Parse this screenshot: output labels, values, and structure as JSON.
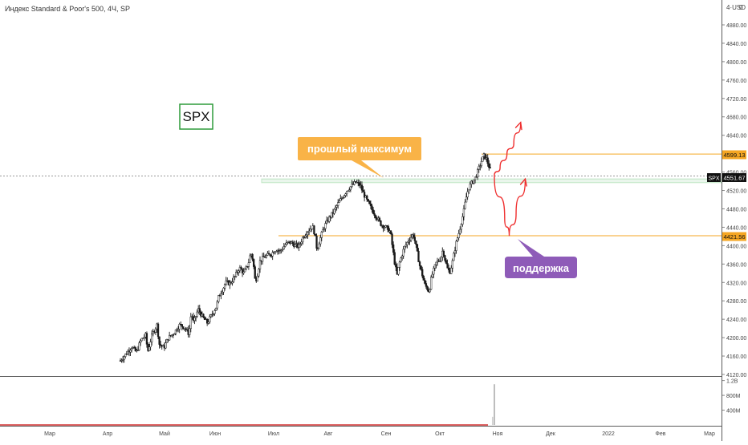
{
  "header": {
    "title": "Индекс Standard & Poor's 500, 4Ч, SP",
    "currency": "4·USD",
    "currency_dot": "0"
  },
  "labels": {
    "symbol_box": "SPX",
    "callout_max": "прошлый максимум",
    "callout_support": "поддержка",
    "price_tag_symbol": "SPX"
  },
  "colors": {
    "candle": "#1a1a1a",
    "resistance": "#f5a623",
    "support": "#f5a623",
    "callout_max_bg": "#f9b347",
    "callout_support_bg": "#8e5bb8",
    "arrow": "#ef2f2f",
    "symbol_box_border": "#2e9b3a",
    "zone": "#bfe5c4",
    "volume_baseline": "#d32f2f"
  },
  "chart_data": {
    "type": "candlestick",
    "title": "Индекс Standard & Poor's 500, 4Ч, SP",
    "ylim": [
      4110,
      4920
    ],
    "y_ticks": [
      4120,
      4160,
      4200,
      4240,
      4280,
      4320,
      4360,
      4400,
      4440,
      4480,
      4520,
      4560,
      4600,
      4640,
      4680,
      4720,
      4760,
      4800,
      4840,
      4880
    ],
    "y_tick_labels": [
      "4120.00",
      "4160.00",
      "4200.00",
      "4240.00",
      "4280.00",
      "4320.00",
      "4360.00",
      "4400.00",
      "4440.00",
      "4480.00",
      "4520.00",
      "4560.00",
      "4600.00",
      "4640.00",
      "4680.00",
      "4720.00",
      "4760.00",
      "4800.00",
      "4840.00",
      "4880.00"
    ],
    "x_tick_labels": [
      "Мар",
      "Апр",
      "Май",
      "Июн",
      "Июл",
      "Авг",
      "Сен",
      "Окт",
      "Ноя",
      "Дек",
      "2022",
      "Фев",
      "Мар"
    ],
    "last_price": {
      "symbol": "SPX",
      "value": 4551.67,
      "label": "4551.67"
    },
    "levels": [
      {
        "name": "resistance",
        "value": 4599.13,
        "label": "4599.13"
      },
      {
        "name": "support",
        "value": 4421.56,
        "label": "4421.56"
      }
    ],
    "zone": [
      4537,
      4545
    ],
    "price_series": [
      [
        0.0,
        4150
      ],
      [
        0.02,
        4162
      ],
      [
        0.05,
        4180
      ],
      [
        0.07,
        4168
      ],
      [
        0.09,
        4195
      ],
      [
        0.11,
        4205
      ],
      [
        0.12,
        4170
      ],
      [
        0.14,
        4208
      ],
      [
        0.16,
        4228
      ],
      [
        0.17,
        4186
      ],
      [
        0.19,
        4178
      ],
      [
        0.21,
        4200
      ],
      [
        0.23,
        4208
      ],
      [
        0.26,
        4228
      ],
      [
        0.28,
        4222
      ],
      [
        0.3,
        4208
      ],
      [
        0.31,
        4255
      ],
      [
        0.32,
        4232
      ],
      [
        0.34,
        4262
      ],
      [
        0.36,
        4244
      ],
      [
        0.38,
        4232
      ],
      [
        0.4,
        4250
      ],
      [
        0.42,
        4268
      ],
      [
        0.43,
        4290
      ],
      [
        0.45,
        4308
      ],
      [
        0.46,
        4320
      ],
      [
        0.48,
        4318
      ],
      [
        0.5,
        4332
      ],
      [
        0.52,
        4352
      ],
      [
        0.54,
        4340
      ],
      [
        0.56,
        4362
      ],
      [
        0.57,
        4385
      ],
      [
        0.58,
        4368
      ],
      [
        0.59,
        4320
      ],
      [
        0.6,
        4340
      ],
      [
        0.61,
        4366
      ],
      [
        0.63,
        4376
      ],
      [
        0.66,
        4382
      ],
      [
        0.68,
        4392
      ],
      [
        0.7,
        4388
      ],
      [
        0.72,
        4402
      ],
      [
        0.74,
        4408
      ],
      [
        0.76,
        4402
      ],
      [
        0.78,
        4398
      ],
      [
        0.8,
        4420
      ],
      [
        0.82,
        4432
      ],
      [
        0.84,
        4442
      ],
      [
        0.85,
        4425
      ],
      [
        0.86,
        4390
      ],
      [
        0.87,
        4410
      ],
      [
        0.89,
        4440
      ],
      [
        0.91,
        4458
      ],
      [
        0.93,
        4472
      ],
      [
        0.95,
        4490
      ],
      [
        0.97,
        4505
      ],
      [
        0.99,
        4520
      ],
      [
        1.01,
        4530
      ],
      [
        1.03,
        4538
      ],
      [
        1.05,
        4530
      ],
      [
        1.06,
        4516
      ],
      [
        1.08,
        4496
      ],
      [
        1.1,
        4478
      ],
      [
        1.12,
        4462
      ],
      [
        1.14,
        4446
      ],
      [
        1.16,
        4440
      ],
      [
        1.18,
        4430
      ],
      [
        1.19,
        4395
      ],
      [
        1.2,
        4360
      ],
      [
        1.21,
        4336
      ],
      [
        1.22,
        4362
      ],
      [
        1.24,
        4394
      ],
      [
        1.26,
        4412
      ],
      [
        1.28,
        4425
      ],
      [
        1.29,
        4405
      ],
      [
        1.3,
        4378
      ],
      [
        1.31,
        4354
      ],
      [
        1.32,
        4336
      ],
      [
        1.33,
        4316
      ],
      [
        1.35,
        4300
      ],
      [
        1.36,
        4332
      ],
      [
        1.38,
        4362
      ],
      [
        1.4,
        4372
      ],
      [
        1.41,
        4392
      ],
      [
        1.42,
        4368
      ],
      [
        1.43,
        4350
      ],
      [
        1.44,
        4342
      ],
      [
        1.45,
        4360
      ],
      [
        1.46,
        4386
      ],
      [
        1.47,
        4410
      ],
      [
        1.48,
        4428
      ],
      [
        1.49,
        4450
      ],
      [
        1.5,
        4472
      ],
      [
        1.51,
        4500
      ],
      [
        1.52,
        4522
      ],
      [
        1.53,
        4532
      ],
      [
        1.54,
        4540
      ],
      [
        1.55,
        4546
      ],
      [
        1.56,
        4558
      ],
      [
        1.57,
        4572
      ],
      [
        1.58,
        4586
      ],
      [
        1.59,
        4596
      ],
      [
        1.6,
        4589
      ],
      [
        1.61,
        4574
      ],
      [
        1.62,
        4562
      ],
      [
        1.63,
        4552
      ]
    ],
    "volume_ylim": [
      0,
      1.3
    ],
    "volume_tick_labels": [
      "1.2B",
      "800M",
      "400M"
    ],
    "volume_ticks": [
      1.2,
      0.8,
      0.4
    ],
    "volume_spike": {
      "t": 1.635,
      "value": 1.1
    },
    "projections": [
      {
        "name": "up-arrow",
        "points": [
          [
            1.635,
            4552
          ],
          [
            1.66,
            4570
          ],
          [
            1.69,
            4600
          ],
          [
            1.72,
            4622
          ],
          [
            1.75,
            4668
          ]
        ]
      },
      {
        "name": "down-up-arrow",
        "points": [
          [
            1.635,
            4552
          ],
          [
            1.68,
            4460
          ],
          [
            1.7,
            4421
          ],
          [
            1.73,
            4470
          ],
          [
            1.77,
            4545
          ]
        ]
      }
    ]
  }
}
